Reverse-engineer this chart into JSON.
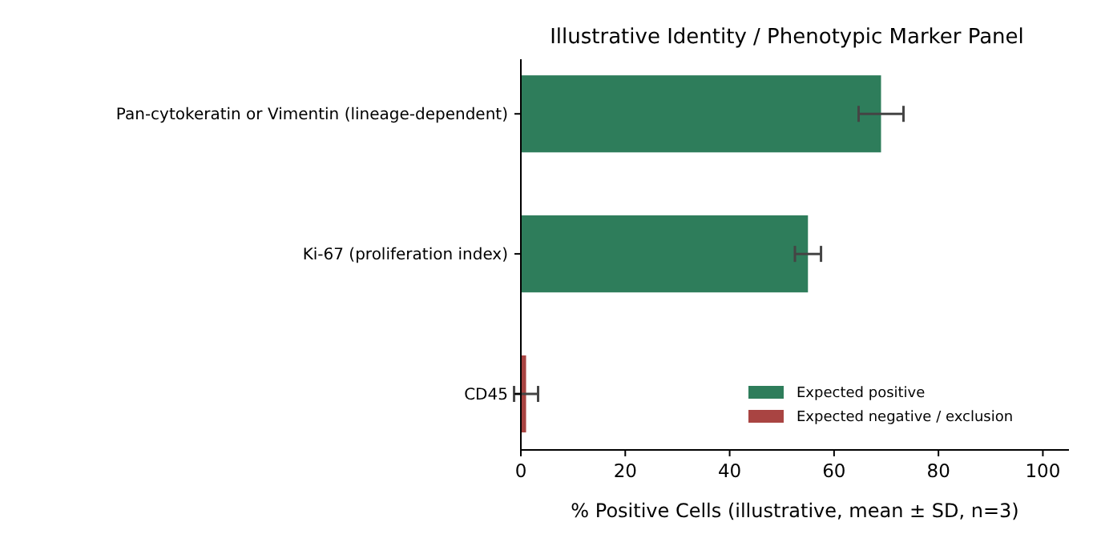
{
  "chart_data": {
    "type": "bar",
    "orientation": "horizontal",
    "title": "Illustrative Identity / Phenotypic Marker Panel",
    "xlabel": "% Positive Cells (illustrative, mean ± SD, n=3)",
    "categories": [
      "Pan-cytokeratin or Vimentin (lineage-dependent)",
      "Ki-67 (proliferation index)",
      "CD45"
    ],
    "series": [
      {
        "name": "Expected positive",
        "color": "#2e7d5b",
        "values": [
          69,
          55,
          null
        ],
        "errors": [
          4.3,
          2.5,
          null
        ]
      },
      {
        "name": "Expected negative / exclusion",
        "color": "#a94442",
        "values": [
          null,
          null,
          1
        ],
        "errors": [
          null,
          null,
          2.3
        ]
      }
    ],
    "xlim": [
      0,
      105
    ],
    "xticks": [
      0,
      20,
      40,
      60,
      80,
      100
    ],
    "grid": false,
    "legend": "bottom right"
  }
}
